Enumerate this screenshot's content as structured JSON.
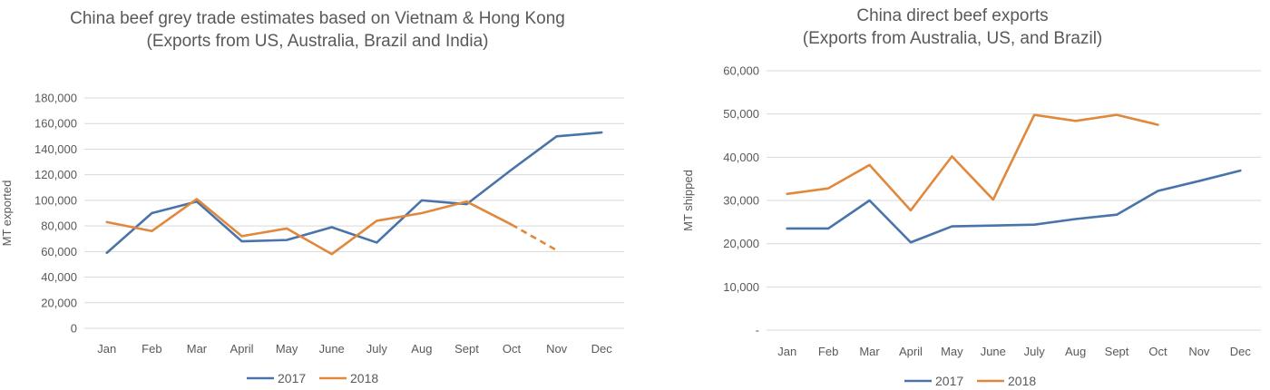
{
  "colors": {
    "s2017": "#4a74a9",
    "s2018": "#e0883c",
    "grid": "#d9d9d9",
    "text": "#595959"
  },
  "chart_data": [
    {
      "type": "line",
      "title": "China beef grey trade estimates based on Vietnam & Hong Kong\n(Exports from US, Australia, Brazil and India)",
      "xlabel": "",
      "ylabel": "MT exported",
      "ylim": [
        0,
        180000
      ],
      "yticks": [
        0,
        20000,
        40000,
        60000,
        80000,
        100000,
        120000,
        140000,
        160000,
        180000
      ],
      "ytick_labels": [
        "0",
        "20,000",
        "40,000",
        "60,000",
        "80,000",
        "100,000",
        "120,000",
        "140,000",
        "160,000",
        "180,000"
      ],
      "categories": [
        "Jan",
        "Feb",
        "Mar",
        "April",
        "May",
        "June",
        "July",
        "Aug",
        "Sept",
        "Oct",
        "Nov",
        "Dec"
      ],
      "grid": true,
      "legend": "bottom",
      "series": [
        {
          "name": "2017",
          "values": [
            59000,
            90000,
            99000,
            68000,
            69000,
            79000,
            67000,
            100000,
            97000,
            124000,
            150000,
            153000
          ]
        },
        {
          "name": "2018",
          "values": [
            83000,
            76000,
            101000,
            72000,
            78000,
            58000,
            84000,
            90000,
            99000,
            81000,
            61000,
            null
          ],
          "dashed_from_index": 9
        }
      ]
    },
    {
      "type": "line",
      "title": "China direct  beef exports\n(Exports from Australia, US, and Brazil)",
      "xlabel": "",
      "ylabel": "MT shipped",
      "ylim": [
        0,
        60000
      ],
      "yticks": [
        0,
        10000,
        20000,
        30000,
        40000,
        50000,
        60000
      ],
      "ytick_labels": [
        "-",
        "10,000",
        "20,000",
        "30,000",
        "40,000",
        "50,000",
        "60,000"
      ],
      "categories": [
        "Jan",
        "Feb",
        "Mar",
        "April",
        "May",
        "June",
        "July",
        "Aug",
        "Sept",
        "Oct",
        "Nov",
        "Dec"
      ],
      "grid": true,
      "legend": "bottom",
      "series": [
        {
          "name": "2017",
          "values": [
            23500,
            23500,
            30000,
            20300,
            24000,
            24200,
            24400,
            25700,
            26700,
            32200,
            34500,
            36900
          ]
        },
        {
          "name": "2018",
          "values": [
            31500,
            32800,
            38200,
            27700,
            40200,
            30200,
            49800,
            48400,
            49800,
            47500,
            null,
            null
          ]
        }
      ]
    }
  ]
}
